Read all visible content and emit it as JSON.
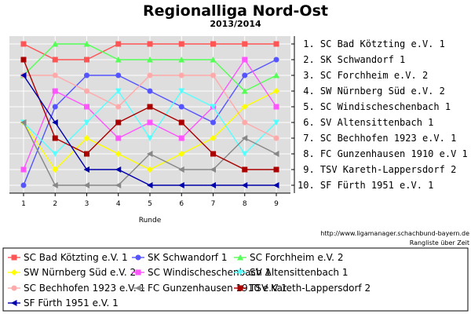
{
  "chart_data": {
    "type": "line",
    "title": "Regionalliga Nord-Ost",
    "subtitle": "2013/2014",
    "xlabel": "Runde",
    "x": [
      1,
      2,
      3,
      4,
      5,
      6,
      7,
      8,
      9
    ],
    "ylim": [
      10.5,
      0.5
    ],
    "y_inverted": true,
    "grid": true,
    "legend": "bottom",
    "source_url": "http://www.ligamanager.schachbund-bayern.de",
    "footer_label": "Rangliste über Zeit",
    "ranking": [
      "1. SC Bad Kötzting e.V. 1",
      "2. SK Schwandorf 1",
      "3. SC Forchheim e.V. 2",
      "4. SW Nürnberg Süd e.V. 2",
      "5. SC Windischeschenbach 1",
      "6. SV Altensittenbach 1",
      "7. SC Bechhofen 1923 e.V. 1",
      "8. FC Gunzenhausen 1910 e.V 1",
      "9. TSV Kareth-Lappersdorf 2",
      "10. SF Fürth 1951 e.V. 1"
    ],
    "series": [
      {
        "name": "SC Bad Kötzting e.V. 1",
        "color": "#ff5555",
        "marker": "square",
        "values": [
          1,
          2,
          2,
          1,
          1,
          1,
          1,
          1,
          1
        ]
      },
      {
        "name": "SK Schwandorf 1",
        "color": "#5555ff",
        "marker": "circle",
        "values": [
          10,
          5,
          3,
          3,
          4,
          5,
          6,
          3,
          2
        ]
      },
      {
        "name": "SC Forchheim e.V. 2",
        "color": "#55ff55",
        "marker": "triangle-up",
        "values": [
          3,
          1,
          1,
          2,
          2,
          2,
          2,
          4,
          3
        ]
      },
      {
        "name": "SW Nürnberg Süd e.V. 2",
        "color": "#ffff00",
        "marker": "diamond",
        "values": [
          6,
          9,
          7,
          8,
          9,
          8,
          7,
          5,
          4
        ]
      },
      {
        "name": "SC Windischeschenbach 1",
        "color": "#ff55ff",
        "marker": "square",
        "values": [
          9,
          4,
          5,
          7,
          6,
          7,
          5,
          2,
          5
        ]
      },
      {
        "name": "SV Altensittenbach 1",
        "color": "#55ffff",
        "marker": "triangle-down",
        "values": [
          6,
          8,
          6,
          4,
          7,
          4,
          5,
          8,
          6
        ]
      },
      {
        "name": "SC Bechhofen 1923 e.V. 1",
        "color": "#ffaaaa",
        "marker": "circle",
        "values": [
          3,
          3,
          4,
          5,
          3,
          3,
          3,
          6,
          7
        ]
      },
      {
        "name": "FC Gunzenhausen 1910 e.V 1",
        "color": "#888888",
        "marker": "triangle-left",
        "values": [
          6,
          10,
          10,
          10,
          8,
          9,
          9,
          7,
          8
        ]
      },
      {
        "name": "TSV Kareth-Lappersdorf 2",
        "color": "#aa0000",
        "marker": "square",
        "values": [
          2,
          7,
          8,
          6,
          5,
          6,
          8,
          9,
          9
        ]
      },
      {
        "name": "SF Fürth 1951 e.V. 1",
        "color": "#0000aa",
        "marker": "triangle-left",
        "values": [
          3,
          6,
          9,
          9,
          10,
          10,
          10,
          10,
          10
        ]
      }
    ]
  }
}
